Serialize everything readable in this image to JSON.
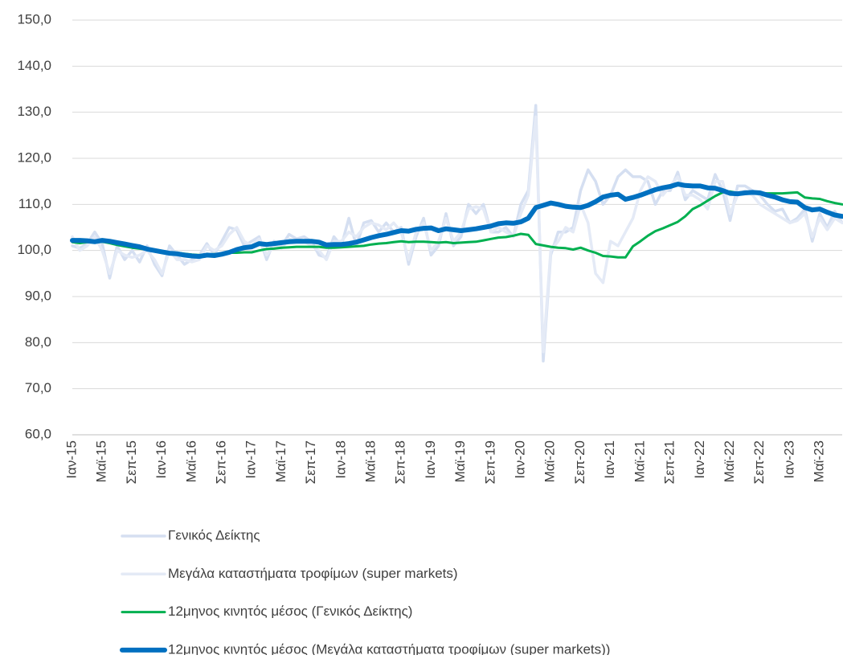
{
  "chart_data": {
    "type": "line",
    "categories": [
      "Ιαν-15",
      null,
      null,
      null,
      "Μαϊ-15",
      null,
      null,
      null,
      "Σεπ-15",
      null,
      null,
      null,
      "Ιαν-16",
      null,
      null,
      null,
      "Μαϊ-16",
      null,
      null,
      null,
      "Σεπ-16",
      null,
      null,
      null,
      "Ιαν-17",
      null,
      null,
      null,
      "Μαϊ-17",
      null,
      null,
      null,
      "Σεπ-17",
      null,
      null,
      null,
      "Ιαν-18",
      null,
      null,
      null,
      "Μαϊ-18",
      null,
      null,
      null,
      "Σεπ-18",
      null,
      null,
      null,
      "Ιαν-19",
      null,
      null,
      null,
      "Μαϊ-19",
      null,
      null,
      null,
      "Σεπ-19",
      null,
      null,
      null,
      "Ιαν-20",
      null,
      null,
      null,
      "Μαϊ-20",
      null,
      null,
      null,
      "Σεπ-20",
      null,
      null,
      null,
      "Ιαν-21",
      null,
      null,
      null,
      "Μαϊ-21",
      null,
      null,
      null,
      "Σεπ-21",
      null,
      null,
      null,
      "Ιαν-22",
      null,
      null,
      null,
      "Μαϊ-22",
      null,
      null,
      null,
      "Σεπ-22",
      null,
      null,
      null,
      "Ιαν-23",
      null,
      null,
      null,
      "Μαϊ-23",
      null,
      null,
      null
    ],
    "series": [
      {
        "name": "Γενικός Δείκτης",
        "color": "#d5dff1",
        "width": 3.5,
        "values": [
          101,
          100.5,
          101.5,
          104,
          101.5,
          94,
          101,
          98,
          100,
          97.5,
          101,
          97,
          94.5,
          101,
          99,
          97,
          98,
          99,
          101.5,
          99,
          102,
          105,
          104.5,
          101,
          102,
          103,
          98,
          102,
          101,
          103.5,
          102.5,
          103,
          102,
          99,
          98.5,
          103,
          101,
          107,
          101,
          106,
          106.5,
          104,
          106,
          104,
          105,
          97,
          103,
          107,
          99,
          101,
          108,
          101,
          103,
          110,
          108,
          110,
          104,
          104,
          105,
          103,
          110,
          113,
          131.5,
          76,
          99,
          104,
          104,
          105,
          113,
          117.5,
          115,
          110,
          112,
          116,
          117.5,
          116,
          116,
          115,
          110,
          113,
          113,
          117,
          111,
          113,
          112,
          111,
          116.5,
          113,
          106.5,
          114,
          114,
          113,
          112,
          110,
          108.5,
          109,
          106,
          107,
          109,
          102,
          108,
          105,
          108.5,
          106
        ]
      },
      {
        "name": "Μεγάλα καταστήματα τροφίμων (super markets)",
        "color": "#e4eaf6",
        "width": 3.5,
        "values": [
          103,
          100,
          101,
          103,
          100,
          95,
          100,
          99,
          98.5,
          99,
          100,
          98,
          95,
          100,
          98,
          98,
          97.5,
          98,
          101,
          100,
          101,
          103.5,
          105,
          102,
          101,
          102.5,
          99,
          101,
          100.5,
          102.5,
          102,
          102,
          101,
          100,
          98,
          102,
          102,
          104,
          103,
          105,
          106,
          105.5,
          104.5,
          106,
          104,
          98,
          104,
          106,
          100,
          102,
          107,
          102,
          104,
          109,
          109.5,
          109,
          104,
          105,
          104,
          103,
          108,
          112,
          129,
          78,
          100,
          102,
          105,
          104,
          110,
          106,
          95,
          93,
          102,
          101,
          104,
          107,
          113,
          116,
          115,
          112,
          114,
          116,
          112,
          112,
          111,
          109,
          115,
          115,
          108,
          112,
          113,
          112,
          110,
          109,
          108,
          107,
          106,
          106.5,
          108,
          103,
          107,
          104.5,
          107,
          106
        ]
      },
      {
        "name": "12μηνος κινητός μέσος (Γενικός Δείκτης)",
        "color": "#00b050",
        "width": 3,
        "values": [
          101.8,
          101.6,
          101.8,
          101.7,
          101.9,
          101.6,
          101.2,
          100.9,
          100.6,
          100.4,
          100.2,
          100.0,
          99.8,
          99.5,
          99.5,
          99.3,
          99.1,
          99.0,
          99.1,
          99.2,
          99.3,
          99.5,
          99.5,
          99.6,
          99.6,
          100.0,
          100.3,
          100.4,
          100.6,
          100.7,
          100.8,
          100.8,
          100.8,
          100.8,
          100.6,
          100.6,
          100.7,
          100.8,
          100.9,
          101.0,
          101.3,
          101.5,
          101.6,
          101.8,
          102.0,
          101.8,
          101.9,
          101.9,
          101.8,
          101.7,
          101.8,
          101.6,
          101.7,
          101.8,
          101.9,
          102.2,
          102.5,
          102.8,
          102.9,
          103.2,
          103.6,
          103.4,
          101.4,
          101.1,
          100.8,
          100.6,
          100.5,
          100.2,
          100.6,
          100.0,
          99.5,
          98.8,
          98.7,
          98.5,
          98.5,
          100.9,
          102.0,
          103.2,
          104.2,
          104.8,
          105.5,
          106.2,
          107.4,
          109.0,
          109.8,
          110.8,
          111.8,
          112.6,
          112.8,
          112.5,
          112.3,
          112.4,
          112.5,
          112.4,
          112.4,
          112.4,
          112.5,
          112.6,
          111.5,
          111.3,
          111.2,
          110.7,
          110.3,
          110.0
        ]
      },
      {
        "name": "12μηνος κινητός μέσος (Μεγάλα καταστήματα τροφίμων (super markets))",
        "color": "#0070c0",
        "width": 6,
        "values": [
          102.2,
          102.2,
          102.1,
          101.9,
          102.2,
          102.0,
          101.7,
          101.4,
          101.1,
          100.8,
          100.3,
          100.0,
          99.7,
          99.4,
          99.3,
          99.0,
          98.8,
          98.7,
          99.0,
          98.9,
          99.2,
          99.6,
          100.2,
          100.6,
          100.8,
          101.5,
          101.3,
          101.5,
          101.7,
          101.9,
          102.0,
          102.0,
          102.0,
          101.8,
          101.2,
          101.3,
          101.3,
          101.5,
          101.8,
          102.3,
          102.8,
          103.2,
          103.5,
          103.9,
          104.3,
          104.2,
          104.6,
          104.8,
          104.9,
          104.3,
          104.7,
          104.5,
          104.3,
          104.5,
          104.7,
          105.0,
          105.3,
          105.8,
          106.0,
          105.9,
          106.2,
          107.0,
          109.3,
          109.8,
          110.3,
          110.0,
          109.6,
          109.4,
          109.3,
          109.8,
          110.6,
          111.6,
          112.0,
          112.2,
          111.1,
          111.5,
          112.0,
          112.6,
          113.2,
          113.6,
          113.9,
          114.4,
          114.1,
          114.0,
          114.0,
          113.6,
          113.5,
          113.0,
          112.4,
          112.3,
          112.5,
          112.6,
          112.5,
          112.0,
          111.6,
          111.0,
          110.6,
          110.5,
          109.3,
          108.8,
          109.0,
          108.3,
          107.7,
          107.4
        ]
      }
    ],
    "ylim": [
      60,
      150
    ],
    "yticks": [
      {
        "value": 60,
        "label": "60,0"
      },
      {
        "value": 70,
        "label": "70,0"
      },
      {
        "value": 80,
        "label": "80,0"
      },
      {
        "value": 90,
        "label": "90,0"
      },
      {
        "value": 100,
        "label": "100,0"
      },
      {
        "value": 110,
        "label": "110,0"
      },
      {
        "value": 120,
        "label": "120,0"
      },
      {
        "value": 130,
        "label": "130,0"
      },
      {
        "value": 140,
        "label": "140,0"
      },
      {
        "value": 150,
        "label": "150,0"
      }
    ],
    "grid": true,
    "legend": "bottom"
  }
}
